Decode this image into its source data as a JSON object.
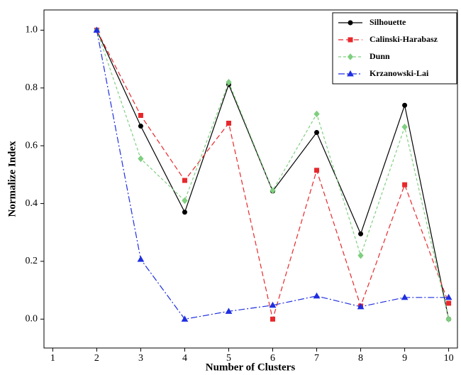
{
  "chart_data": {
    "type": "line",
    "xlabel": "Number of Clusters",
    "ylabel": "Normalize Index",
    "x": [
      2,
      3,
      4,
      5,
      6,
      7,
      8,
      9,
      10
    ],
    "xlim": [
      0.8,
      10.2
    ],
    "xticks": [
      1,
      2,
      3,
      4,
      5,
      6,
      7,
      8,
      9,
      10
    ],
    "ylim": [
      -0.1,
      1.07
    ],
    "yticks": [
      {
        "value": 0,
        "label": "0.0"
      },
      {
        "value": 0.2,
        "label": "0.2"
      },
      {
        "value": 0.4,
        "label": "0.4"
      },
      {
        "value": 0.6,
        "label": "0.6"
      },
      {
        "value": 0.8,
        "label": "0.8"
      },
      {
        "value": 1,
        "label": "1.0"
      }
    ],
    "grid": false,
    "legend": "upper right",
    "series": [
      {
        "name": "Silhouette",
        "color": "#000000",
        "linestyle": "solid",
        "marker": "circle",
        "values": [
          1.0,
          0.668,
          0.37,
          0.812,
          0.443,
          0.646,
          0.295,
          0.74,
          0.0
        ]
      },
      {
        "name": "Calinski-Harabasz",
        "color": "#e8282b",
        "linestyle": "dashed",
        "marker": "square",
        "values": [
          1.0,
          0.705,
          0.48,
          0.678,
          0.0,
          0.515,
          0.045,
          0.465,
          0.055
        ]
      },
      {
        "name": "Dunn",
        "color": "#7fcf7f",
        "linestyle": "dotted",
        "marker": "diamond",
        "values": [
          1.0,
          0.555,
          0.41,
          0.82,
          0.445,
          0.71,
          0.22,
          0.665,
          0.0
        ]
      },
      {
        "name": "Krzanowski-Lai",
        "color": "#1f2fe0",
        "linestyle": "dashdot",
        "marker": "triangle",
        "values": [
          1.0,
          0.207,
          0.0,
          0.027,
          0.048,
          0.08,
          0.043,
          0.075,
          0.075
        ]
      }
    ]
  }
}
